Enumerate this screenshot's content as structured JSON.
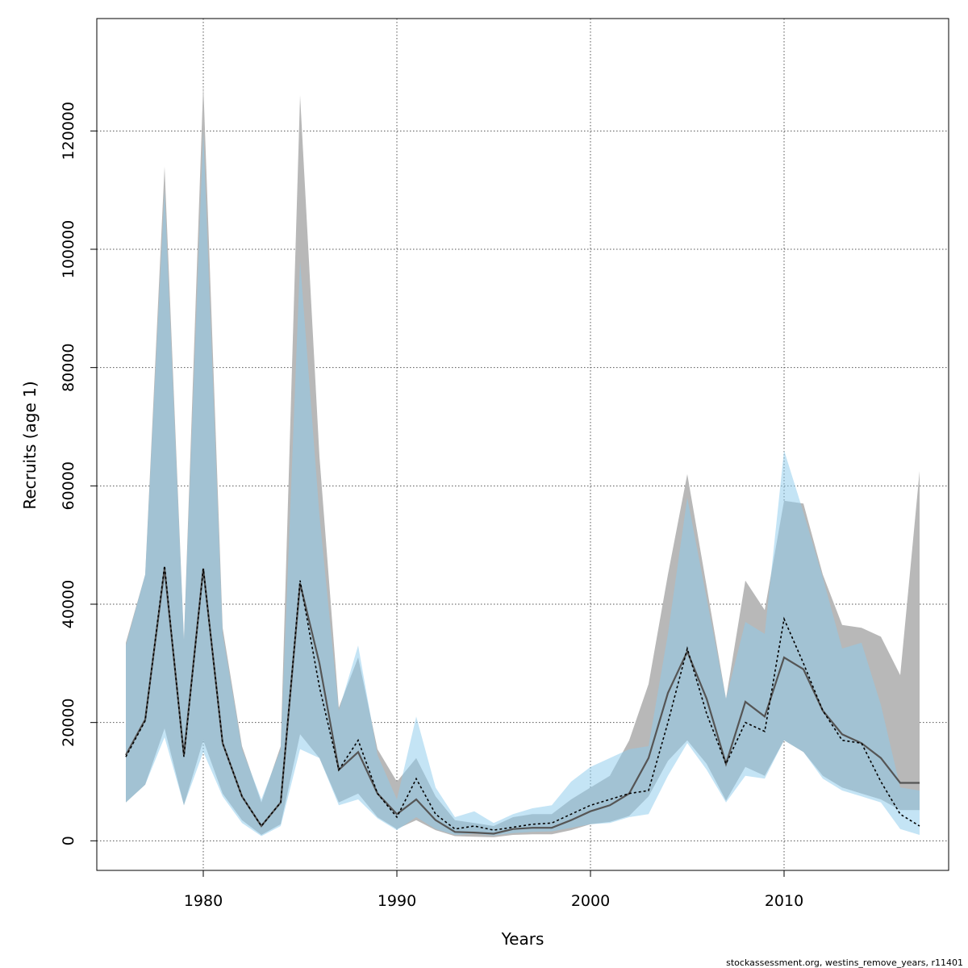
{
  "chart_data": {
    "type": "area",
    "xlabel": "Years",
    "ylabel": "Recruits (age 1)",
    "xlim": [
      1974.5,
      2018.5
    ],
    "ylim": [
      -5000,
      139000
    ],
    "xticks": [
      1980,
      1990,
      2000,
      2010
    ],
    "yticks": [
      0,
      20000,
      40000,
      60000,
      80000,
      100000,
      120000
    ],
    "grid": true,
    "colors": {
      "ribbon_1": "#b8b8b8",
      "ribbon_2": "#8ecbec",
      "line_1": "#555555",
      "line_2": "#000000"
    },
    "series": [
      {
        "x": [
          1976,
          1977,
          1978,
          1979,
          1980,
          1981,
          1982,
          1983,
          1984,
          1985,
          1986,
          1987,
          1988,
          1989,
          1990,
          1991,
          1992,
          1993,
          1994,
          1995,
          1996,
          1997,
          1998,
          1999,
          2000,
          2001,
          2002,
          2003,
          2004,
          2005,
          2006,
          2007,
          2008,
          2009,
          2010,
          2011,
          2012,
          2013,
          2014,
          2015,
          2016,
          2017
        ],
        "values": [
          14500,
          20500,
          46000,
          14500,
          46000,
          16500,
          7500,
          2500,
          6500,
          43500,
          30000,
          12000,
          15000,
          8000,
          4500,
          7000,
          3500,
          1500,
          1400,
          1200,
          2000,
          2200,
          2200,
          3500,
          5000,
          6000,
          8000,
          14000,
          25000,
          32000,
          24000,
          13000,
          23500,
          21000,
          31000,
          29000,
          22000,
          18000,
          16500,
          14000,
          9800,
          9800
        ],
        "lower": [
          6500,
          9500,
          19000,
          6000,
          17000,
          8000,
          3500,
          1000,
          2800,
          18000,
          14000,
          6500,
          8000,
          4000,
          2000,
          3500,
          1800,
          800,
          700,
          600,
          1000,
          1100,
          1100,
          1800,
          2800,
          3200,
          4200,
          7500,
          13500,
          17000,
          13000,
          6800,
          12500,
          11000,
          17000,
          15000,
          11000,
          9000,
          8000,
          7000,
          5200,
          5200
        ],
        "upper": [
          33500,
          45000,
          114000,
          34000,
          128000,
          36000,
          16000,
          6500,
          16000,
          126000,
          65000,
          22500,
          31000,
          15500,
          10000,
          14000,
          7500,
          3500,
          3000,
          2500,
          4000,
          4500,
          4500,
          7000,
          9000,
          11000,
          17000,
          26500,
          45000,
          62000,
          43000,
          24000,
          44000,
          39000,
          57500,
          57000,
          45000,
          36500,
          36000,
          34500,
          28000,
          62500
        ]
      },
      {
        "x": [
          1976,
          1977,
          1978,
          1979,
          1980,
          1981,
          1982,
          1983,
          1984,
          1985,
          1986,
          1987,
          1988,
          1989,
          1990,
          1991,
          1992,
          1993,
          1994,
          1995,
          1996,
          1997,
          1998,
          1999,
          2000,
          2001,
          2002,
          2003,
          2004,
          2005,
          2006,
          2007,
          2008,
          2009,
          2010,
          2011,
          2012,
          2013,
          2014,
          2015,
          2016,
          2017
        ],
        "values": [
          14200,
          20300,
          46500,
          14200,
          46000,
          16500,
          7500,
          2500,
          6500,
          44000,
          26000,
          12000,
          17000,
          8000,
          4000,
          10500,
          4500,
          2000,
          2500,
          1800,
          2300,
          2800,
          3000,
          4500,
          6000,
          7000,
          8000,
          8500,
          20000,
          32500,
          21500,
          13000,
          20000,
          18500,
          37500,
          30000,
          22000,
          17000,
          16500,
          10000,
          4500,
          2500
        ],
        "lower": [
          6500,
          9500,
          17500,
          6000,
          15000,
          7500,
          3000,
          800,
          2500,
          15500,
          14000,
          6000,
          7000,
          3800,
          1800,
          4000,
          2000,
          1000,
          1200,
          900,
          1300,
          1500,
          1600,
          2200,
          2800,
          3000,
          4000,
          4500,
          11000,
          16500,
          12000,
          6500,
          11000,
          10500,
          17000,
          15000,
          10500,
          8500,
          7500,
          6500,
          2000,
          1000
        ],
        "upper": [
          33000,
          45000,
          110000,
          34000,
          120000,
          35000,
          15500,
          7000,
          15500,
          98000,
          55000,
          22000,
          33000,
          14500,
          7000,
          21000,
          9000,
          4000,
          5000,
          3000,
          4500,
          5500,
          6000,
          10000,
          12500,
          14000,
          15500,
          16000,
          35000,
          58000,
          41000,
          24000,
          37000,
          35000,
          66000,
          55500,
          44500,
          32500,
          33500,
          23000,
          9000,
          8500
        ]
      }
    ]
  },
  "footer": {
    "credit": "stockassessment.org, westins_remove_years, r11401"
  }
}
